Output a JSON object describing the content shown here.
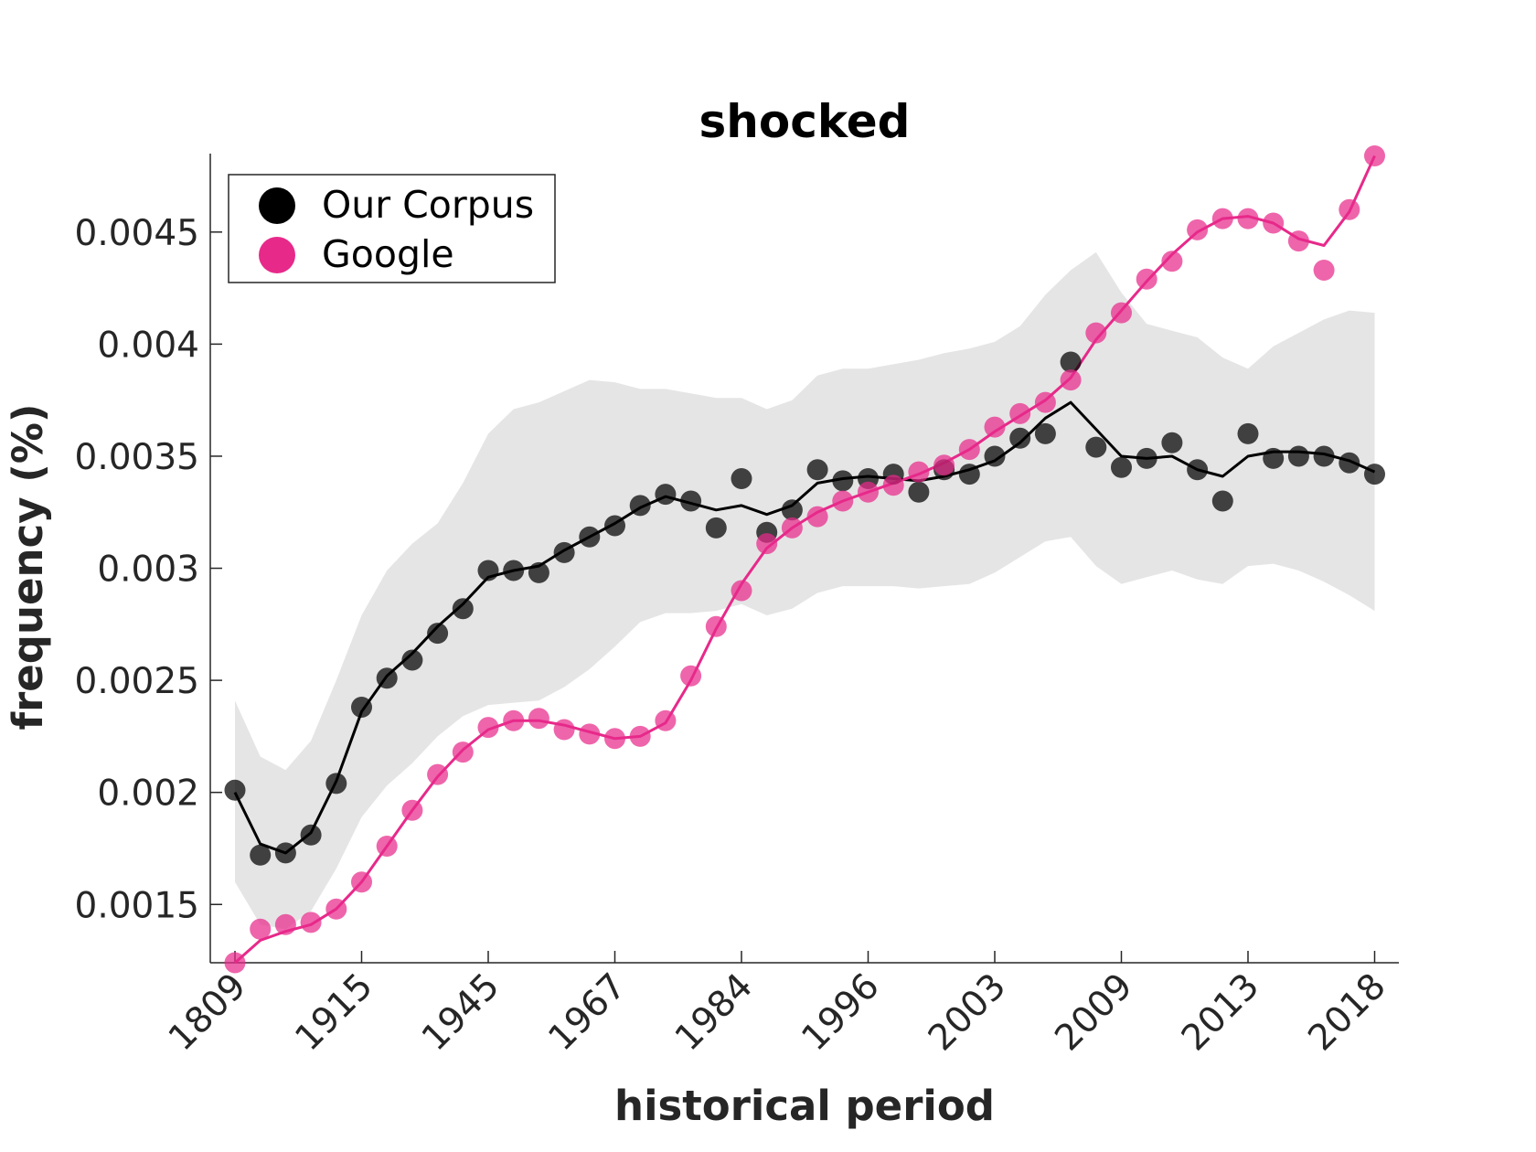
{
  "chart_data": {
    "type": "line",
    "title": "shocked",
    "xlabel": "historical period",
    "ylabel": "frequency (%)",
    "ylim": [
      0.00124,
      0.00485
    ],
    "xtick_labels": [
      "1809",
      "1915",
      "1945",
      "1967",
      "1984",
      "1996",
      "2003",
      "2009",
      "2013",
      "2018"
    ],
    "xtick_indices": [
      0,
      5,
      10,
      15,
      20,
      25,
      30,
      35,
      40,
      45
    ],
    "yticks": [
      0.0015,
      0.002,
      0.0025,
      0.003,
      0.0035,
      0.004,
      0.0045
    ],
    "ytick_labels": [
      "0.0015",
      "0.002",
      "0.0025",
      "0.003",
      "0.0035",
      "0.004",
      "0.0045"
    ],
    "legend": {
      "position": "top-left",
      "entries": [
        "Our Corpus",
        "Google"
      ]
    },
    "colors": {
      "corpus": "#000000",
      "google": "#e7298a",
      "band": "#e5e5e5"
    },
    "series": [
      {
        "name": "Our Corpus",
        "points": [
          0.00201,
          0.00172,
          0.00173,
          0.00181,
          0.00204,
          0.00238,
          0.00251,
          0.00259,
          0.00271,
          0.00282,
          0.00299,
          0.00299,
          0.00298,
          0.00307,
          0.00314,
          0.00319,
          0.00328,
          0.00333,
          0.0033,
          0.00318,
          0.0034,
          0.00316,
          0.00326,
          0.00344,
          0.00339,
          0.0034,
          0.00342,
          0.00334,
          0.00344,
          0.00342,
          0.0035,
          0.00358,
          0.0036,
          0.00392,
          0.00354,
          0.00345,
          0.00349,
          0.00356,
          0.00344,
          0.0033,
          0.0036,
          0.00349,
          0.0035,
          0.0035,
          0.00347,
          0.00342
        ],
        "smoothed": [
          0.002,
          0.00177,
          0.00173,
          0.00182,
          0.00205,
          0.00236,
          0.00252,
          0.00262,
          0.00274,
          0.00284,
          0.00296,
          0.00299,
          0.00301,
          0.00308,
          0.00314,
          0.0032,
          0.00327,
          0.00332,
          0.00329,
          0.00326,
          0.00328,
          0.00324,
          0.00328,
          0.00338,
          0.0034,
          0.00341,
          0.0034,
          0.00339,
          0.00341,
          0.00344,
          0.00348,
          0.00356,
          0.00367,
          0.00374,
          0.00362,
          0.0035,
          0.00349,
          0.0035,
          0.00344,
          0.00341,
          0.0035,
          0.00352,
          0.00352,
          0.00351,
          0.00348,
          0.00343
        ],
        "band_upper": [
          0.00241,
          0.00216,
          0.0021,
          0.00223,
          0.0025,
          0.00279,
          0.00299,
          0.00311,
          0.0032,
          0.00338,
          0.0036,
          0.00371,
          0.00374,
          0.00379,
          0.00384,
          0.00383,
          0.0038,
          0.0038,
          0.00378,
          0.00376,
          0.00376,
          0.00371,
          0.00375,
          0.00386,
          0.00389,
          0.00389,
          0.00391,
          0.00393,
          0.00396,
          0.00398,
          0.00401,
          0.00408,
          0.00422,
          0.00433,
          0.00441,
          0.00423,
          0.00409,
          0.00406,
          0.00403,
          0.00394,
          0.00389,
          0.00399,
          0.00405,
          0.00411,
          0.00415,
          0.00414
        ],
        "band_lower": [
          0.0016,
          0.00141,
          0.00139,
          0.00147,
          0.00166,
          0.00189,
          0.00203,
          0.00213,
          0.00225,
          0.00234,
          0.00239,
          0.0024,
          0.00241,
          0.00247,
          0.00255,
          0.00265,
          0.00276,
          0.0028,
          0.0028,
          0.00281,
          0.00284,
          0.00279,
          0.00282,
          0.00289,
          0.00292,
          0.00292,
          0.00292,
          0.00291,
          0.00292,
          0.00293,
          0.00298,
          0.00305,
          0.00312,
          0.00314,
          0.00301,
          0.00293,
          0.00296,
          0.00299,
          0.00295,
          0.00293,
          0.00301,
          0.00302,
          0.00299,
          0.00294,
          0.00288,
          0.00281
        ]
      },
      {
        "name": "Google",
        "points": [
          0.00124,
          0.00139,
          0.00141,
          0.00142,
          0.00148,
          0.0016,
          0.00176,
          0.00192,
          0.00208,
          0.00218,
          0.00229,
          0.00232,
          0.00233,
          0.00228,
          0.00226,
          0.00224,
          0.00225,
          0.00232,
          0.00252,
          0.00274,
          0.0029,
          0.00311,
          0.00318,
          0.00323,
          0.0033,
          0.00334,
          0.00337,
          0.00343,
          0.00346,
          0.00353,
          0.00363,
          0.00369,
          0.00374,
          0.00384,
          0.00405,
          0.00414,
          0.00429,
          0.00437,
          0.00451,
          0.00456,
          0.00456,
          0.00454,
          0.00446,
          0.00433,
          0.0046,
          0.00484
        ],
        "smoothed": [
          0.00124,
          0.00134,
          0.00138,
          0.00141,
          0.00148,
          0.0016,
          0.00176,
          0.00192,
          0.00207,
          0.00219,
          0.00228,
          0.00232,
          0.00232,
          0.0023,
          0.00227,
          0.00224,
          0.00225,
          0.00231,
          0.0025,
          0.00273,
          0.00293,
          0.00309,
          0.00318,
          0.00325,
          0.0033,
          0.00334,
          0.00338,
          0.00342,
          0.00347,
          0.00353,
          0.00361,
          0.00368,
          0.00375,
          0.00385,
          0.00402,
          0.00415,
          0.00428,
          0.0044,
          0.0045,
          0.00456,
          0.00457,
          0.00454,
          0.00447,
          0.00444,
          0.00459,
          0.00484
        ]
      }
    ]
  }
}
